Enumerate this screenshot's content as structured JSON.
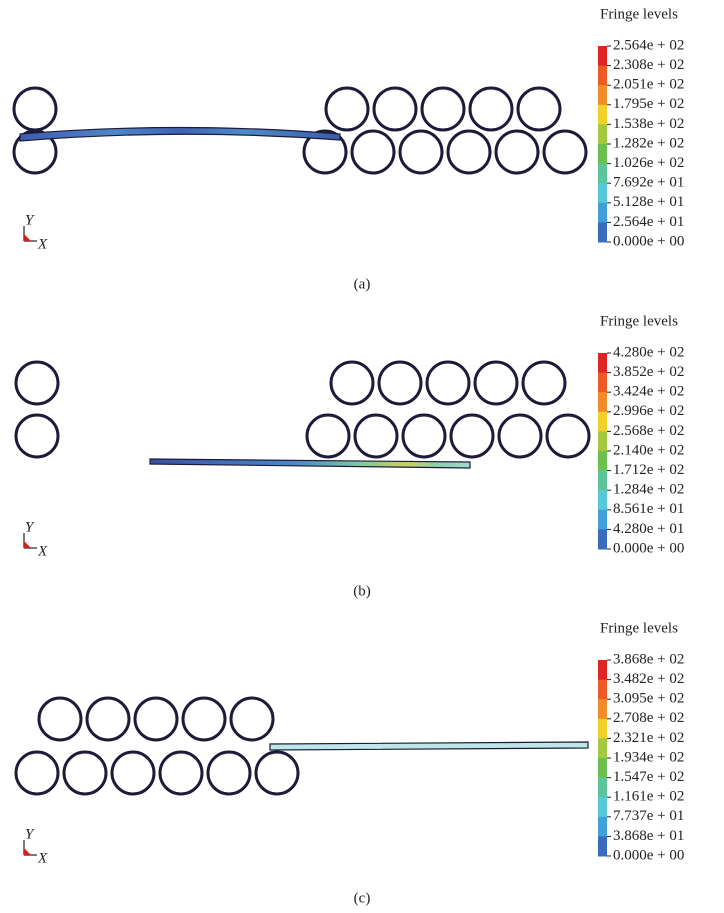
{
  "legend_title": "Fringe levels",
  "axes": {
    "y": "Y",
    "x": "X"
  },
  "panels": [
    {
      "caption": "(a)",
      "levels": [
        "2.564e + 02",
        "2.308e + 02",
        "2.051e + 02",
        "1.795e + 02",
        "1.538e + 02",
        "1.282e + 02",
        "1.026e + 02",
        "7.692e + 01",
        "5.128e + 01",
        "2.564e + 01",
        "0.000e + 00"
      ]
    },
    {
      "caption": "(b)",
      "levels": [
        "4.280e + 02",
        "3.852e + 02",
        "3.424e + 02",
        "2.996e + 02",
        "2.568e + 02",
        "2.140e + 02",
        "1.712e + 02",
        "1.284e + 02",
        "8.561e + 01",
        "4.280e + 01",
        "0.000e + 00"
      ]
    },
    {
      "caption": "(c)",
      "levels": [
        "3.868e + 02",
        "3.482e + 02",
        "3.095e + 02",
        "2.708e + 02",
        "2.321e + 02",
        "1.934e + 02",
        "1.547e + 02",
        "1.161e + 02",
        "7.737e + 01",
        "3.868e + 01",
        "0.000e + 00"
      ]
    }
  ]
}
